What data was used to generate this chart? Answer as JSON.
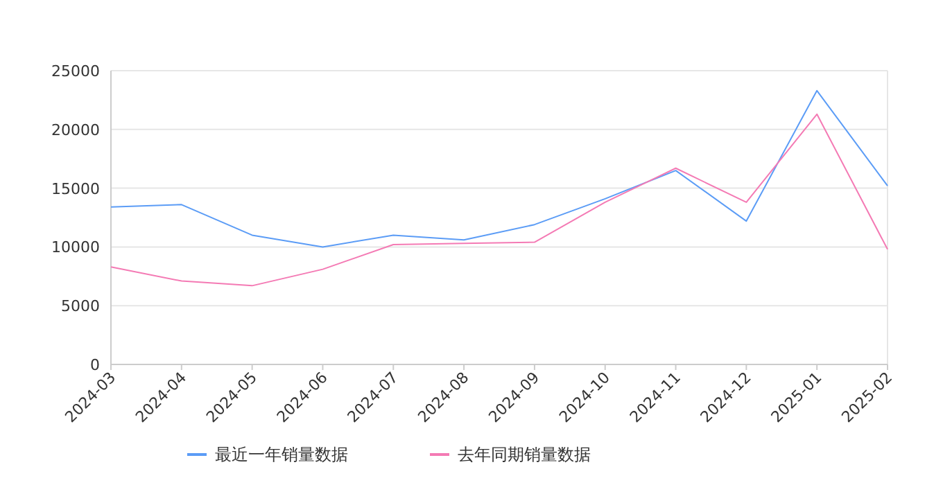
{
  "chart_data": {
    "type": "line",
    "categories": [
      "2024-03",
      "2024-04",
      "2024-05",
      "2024-06",
      "2024-07",
      "2024-08",
      "2024-09",
      "2024-10",
      "2024-11",
      "2024-12",
      "2025-01",
      "2025-02"
    ],
    "series": [
      {
        "name": "最近一年销量数据",
        "color": "#5b9cf6",
        "values": [
          13400,
          13600,
          11000,
          10000,
          11000,
          10600,
          11900,
          14100,
          16500,
          12200,
          23300,
          15200
        ]
      },
      {
        "name": "去年同期销量数据",
        "color": "#f47ab4",
        "values": [
          8300,
          7100,
          6700,
          8100,
          10200,
          10300,
          10400,
          13800,
          16700,
          13800,
          21300,
          9800
        ]
      }
    ],
    "ylim": [
      0,
      25000
    ],
    "yticks": [
      0,
      5000,
      10000,
      15000,
      20000,
      25000
    ],
    "grid": "y",
    "legend": "bottom",
    "marker": "none",
    "line_style": "solid"
  }
}
